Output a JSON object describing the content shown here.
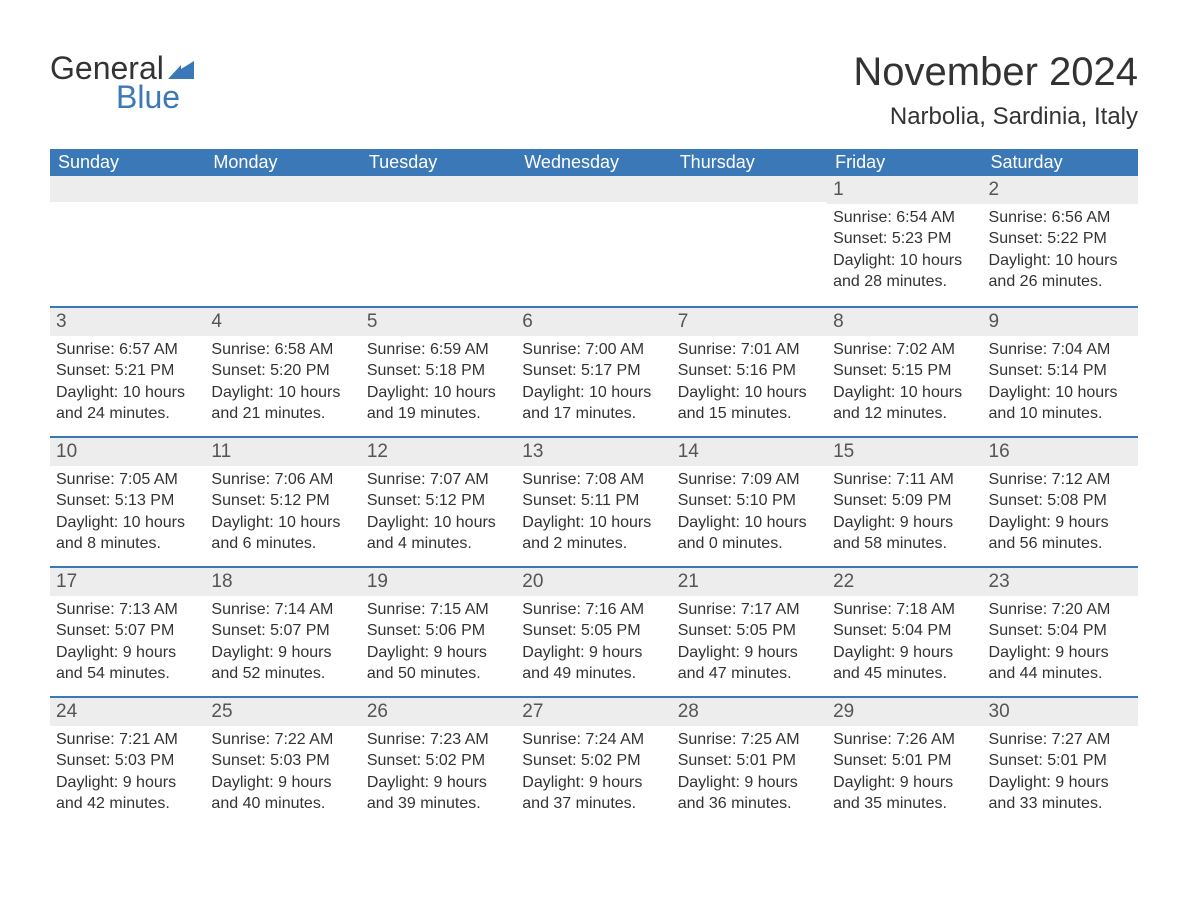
{
  "logo": {
    "general": "General",
    "blue": "Blue",
    "flag_color": "#3b78b8"
  },
  "title": "November 2024",
  "location": "Narbolia, Sardinia, Italy",
  "day_headers": [
    "Sunday",
    "Monday",
    "Tuesday",
    "Wednesday",
    "Thursday",
    "Friday",
    "Saturday"
  ],
  "colors": {
    "header_bg": "#3b78b8",
    "header_text": "#ffffff",
    "daynum_bg": "#ededed",
    "text": "#333333",
    "row_border": "#3b78b8"
  },
  "weeks": [
    [
      null,
      null,
      null,
      null,
      null,
      {
        "n": "1",
        "sunrise": "Sunrise: 6:54 AM",
        "sunset": "Sunset: 5:23 PM",
        "daylight": "Daylight: 10 hours and 28 minutes."
      },
      {
        "n": "2",
        "sunrise": "Sunrise: 6:56 AM",
        "sunset": "Sunset: 5:22 PM",
        "daylight": "Daylight: 10 hours and 26 minutes."
      }
    ],
    [
      {
        "n": "3",
        "sunrise": "Sunrise: 6:57 AM",
        "sunset": "Sunset: 5:21 PM",
        "daylight": "Daylight: 10 hours and 24 minutes."
      },
      {
        "n": "4",
        "sunrise": "Sunrise: 6:58 AM",
        "sunset": "Sunset: 5:20 PM",
        "daylight": "Daylight: 10 hours and 21 minutes."
      },
      {
        "n": "5",
        "sunrise": "Sunrise: 6:59 AM",
        "sunset": "Sunset: 5:18 PM",
        "daylight": "Daylight: 10 hours and 19 minutes."
      },
      {
        "n": "6",
        "sunrise": "Sunrise: 7:00 AM",
        "sunset": "Sunset: 5:17 PM",
        "daylight": "Daylight: 10 hours and 17 minutes."
      },
      {
        "n": "7",
        "sunrise": "Sunrise: 7:01 AM",
        "sunset": "Sunset: 5:16 PM",
        "daylight": "Daylight: 10 hours and 15 minutes."
      },
      {
        "n": "8",
        "sunrise": "Sunrise: 7:02 AM",
        "sunset": "Sunset: 5:15 PM",
        "daylight": "Daylight: 10 hours and 12 minutes."
      },
      {
        "n": "9",
        "sunrise": "Sunrise: 7:04 AM",
        "sunset": "Sunset: 5:14 PM",
        "daylight": "Daylight: 10 hours and 10 minutes."
      }
    ],
    [
      {
        "n": "10",
        "sunrise": "Sunrise: 7:05 AM",
        "sunset": "Sunset: 5:13 PM",
        "daylight": "Daylight: 10 hours and 8 minutes."
      },
      {
        "n": "11",
        "sunrise": "Sunrise: 7:06 AM",
        "sunset": "Sunset: 5:12 PM",
        "daylight": "Daylight: 10 hours and 6 minutes."
      },
      {
        "n": "12",
        "sunrise": "Sunrise: 7:07 AM",
        "sunset": "Sunset: 5:12 PM",
        "daylight": "Daylight: 10 hours and 4 minutes."
      },
      {
        "n": "13",
        "sunrise": "Sunrise: 7:08 AM",
        "sunset": "Sunset: 5:11 PM",
        "daylight": "Daylight: 10 hours and 2 minutes."
      },
      {
        "n": "14",
        "sunrise": "Sunrise: 7:09 AM",
        "sunset": "Sunset: 5:10 PM",
        "daylight": "Daylight: 10 hours and 0 minutes."
      },
      {
        "n": "15",
        "sunrise": "Sunrise: 7:11 AM",
        "sunset": "Sunset: 5:09 PM",
        "daylight": "Daylight: 9 hours and 58 minutes."
      },
      {
        "n": "16",
        "sunrise": "Sunrise: 7:12 AM",
        "sunset": "Sunset: 5:08 PM",
        "daylight": "Daylight: 9 hours and 56 minutes."
      }
    ],
    [
      {
        "n": "17",
        "sunrise": "Sunrise: 7:13 AM",
        "sunset": "Sunset: 5:07 PM",
        "daylight": "Daylight: 9 hours and 54 minutes."
      },
      {
        "n": "18",
        "sunrise": "Sunrise: 7:14 AM",
        "sunset": "Sunset: 5:07 PM",
        "daylight": "Daylight: 9 hours and 52 minutes."
      },
      {
        "n": "19",
        "sunrise": "Sunrise: 7:15 AM",
        "sunset": "Sunset: 5:06 PM",
        "daylight": "Daylight: 9 hours and 50 minutes."
      },
      {
        "n": "20",
        "sunrise": "Sunrise: 7:16 AM",
        "sunset": "Sunset: 5:05 PM",
        "daylight": "Daylight: 9 hours and 49 minutes."
      },
      {
        "n": "21",
        "sunrise": "Sunrise: 7:17 AM",
        "sunset": "Sunset: 5:05 PM",
        "daylight": "Daylight: 9 hours and 47 minutes."
      },
      {
        "n": "22",
        "sunrise": "Sunrise: 7:18 AM",
        "sunset": "Sunset: 5:04 PM",
        "daylight": "Daylight: 9 hours and 45 minutes."
      },
      {
        "n": "23",
        "sunrise": "Sunrise: 7:20 AM",
        "sunset": "Sunset: 5:04 PM",
        "daylight": "Daylight: 9 hours and 44 minutes."
      }
    ],
    [
      {
        "n": "24",
        "sunrise": "Sunrise: 7:21 AM",
        "sunset": "Sunset: 5:03 PM",
        "daylight": "Daylight: 9 hours and 42 minutes."
      },
      {
        "n": "25",
        "sunrise": "Sunrise: 7:22 AM",
        "sunset": "Sunset: 5:03 PM",
        "daylight": "Daylight: 9 hours and 40 minutes."
      },
      {
        "n": "26",
        "sunrise": "Sunrise: 7:23 AM",
        "sunset": "Sunset: 5:02 PM",
        "daylight": "Daylight: 9 hours and 39 minutes."
      },
      {
        "n": "27",
        "sunrise": "Sunrise: 7:24 AM",
        "sunset": "Sunset: 5:02 PM",
        "daylight": "Daylight: 9 hours and 37 minutes."
      },
      {
        "n": "28",
        "sunrise": "Sunrise: 7:25 AM",
        "sunset": "Sunset: 5:01 PM",
        "daylight": "Daylight: 9 hours and 36 minutes."
      },
      {
        "n": "29",
        "sunrise": "Sunrise: 7:26 AM",
        "sunset": "Sunset: 5:01 PM",
        "daylight": "Daylight: 9 hours and 35 minutes."
      },
      {
        "n": "30",
        "sunrise": "Sunrise: 7:27 AM",
        "sunset": "Sunset: 5:01 PM",
        "daylight": "Daylight: 9 hours and 33 minutes."
      }
    ]
  ]
}
